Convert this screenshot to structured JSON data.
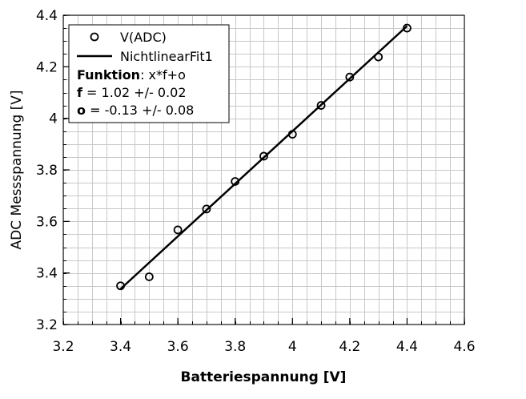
{
  "chart_data": {
    "type": "scatter",
    "xlabel": "Batteriespannung [V]",
    "ylabel": "ADC Messspannung [V]",
    "xlim": [
      3.2,
      4.6
    ],
    "ylim": [
      3.2,
      4.4
    ],
    "xticks": [
      "3.2",
      "3.4",
      "3.6",
      "3.8",
      "4",
      "4.2",
      "4.4",
      "4.6"
    ],
    "yticks": [
      "3.2",
      "3.4",
      "3.6",
      "3.8",
      "4",
      "4.2",
      "4.4"
    ],
    "grid": true,
    "legend_position": "top-left",
    "series": [
      {
        "name": "V(ADC)",
        "marker": "circle",
        "x": [
          3.4,
          3.5,
          3.6,
          3.7,
          3.8,
          3.9,
          4.0,
          4.1,
          4.2,
          4.3,
          4.4
        ],
        "y": [
          3.35,
          3.385,
          3.567,
          3.648,
          3.755,
          3.853,
          3.938,
          4.05,
          4.16,
          4.238,
          4.35
        ]
      },
      {
        "name": "NichtlinearFit1",
        "line": true,
        "x": [
          3.4,
          4.4
        ],
        "y": [
          3.338,
          4.358
        ]
      }
    ],
    "legend": {
      "items": [
        "V(ADC)",
        "NichtlinearFit1"
      ],
      "fit_info": [
        {
          "bold": "Funktion",
          "rest": ": x*f+o"
        },
        {
          "bold": "f",
          "rest": " = 1.02 +/- 0.02"
        },
        {
          "bold": "o",
          "rest": " = -0.13 +/- 0.08"
        }
      ]
    }
  }
}
